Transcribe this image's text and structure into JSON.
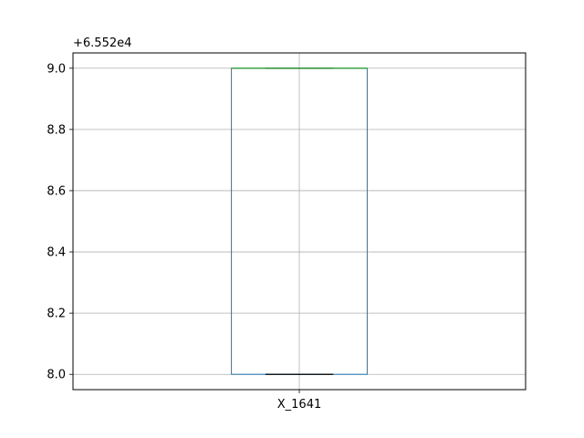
{
  "chart_data": {
    "type": "box",
    "title": "",
    "xlabel": "",
    "ylabel": "",
    "offset_text": "+6.552e4",
    "categories": [
      "X_1641"
    ],
    "ylim": [
      7.95,
      9.05
    ],
    "yticks": [
      8.0,
      8.2,
      8.4,
      8.6,
      8.8,
      9.0
    ],
    "ytick_labels": [
      "8.0",
      "8.2",
      "8.4",
      "8.6",
      "8.8",
      "9.0"
    ],
    "grid": true,
    "boxes": [
      {
        "name": "X_1641",
        "whisker_low": 8.0,
        "q1": 8.0,
        "median": 9.0,
        "q3": 9.0,
        "whisker_high": 9.0
      }
    ],
    "colors": {
      "box": "#1f77b4",
      "median": "#2ca02c",
      "whisker": "#000000",
      "grid": "#b0b0b0"
    }
  }
}
